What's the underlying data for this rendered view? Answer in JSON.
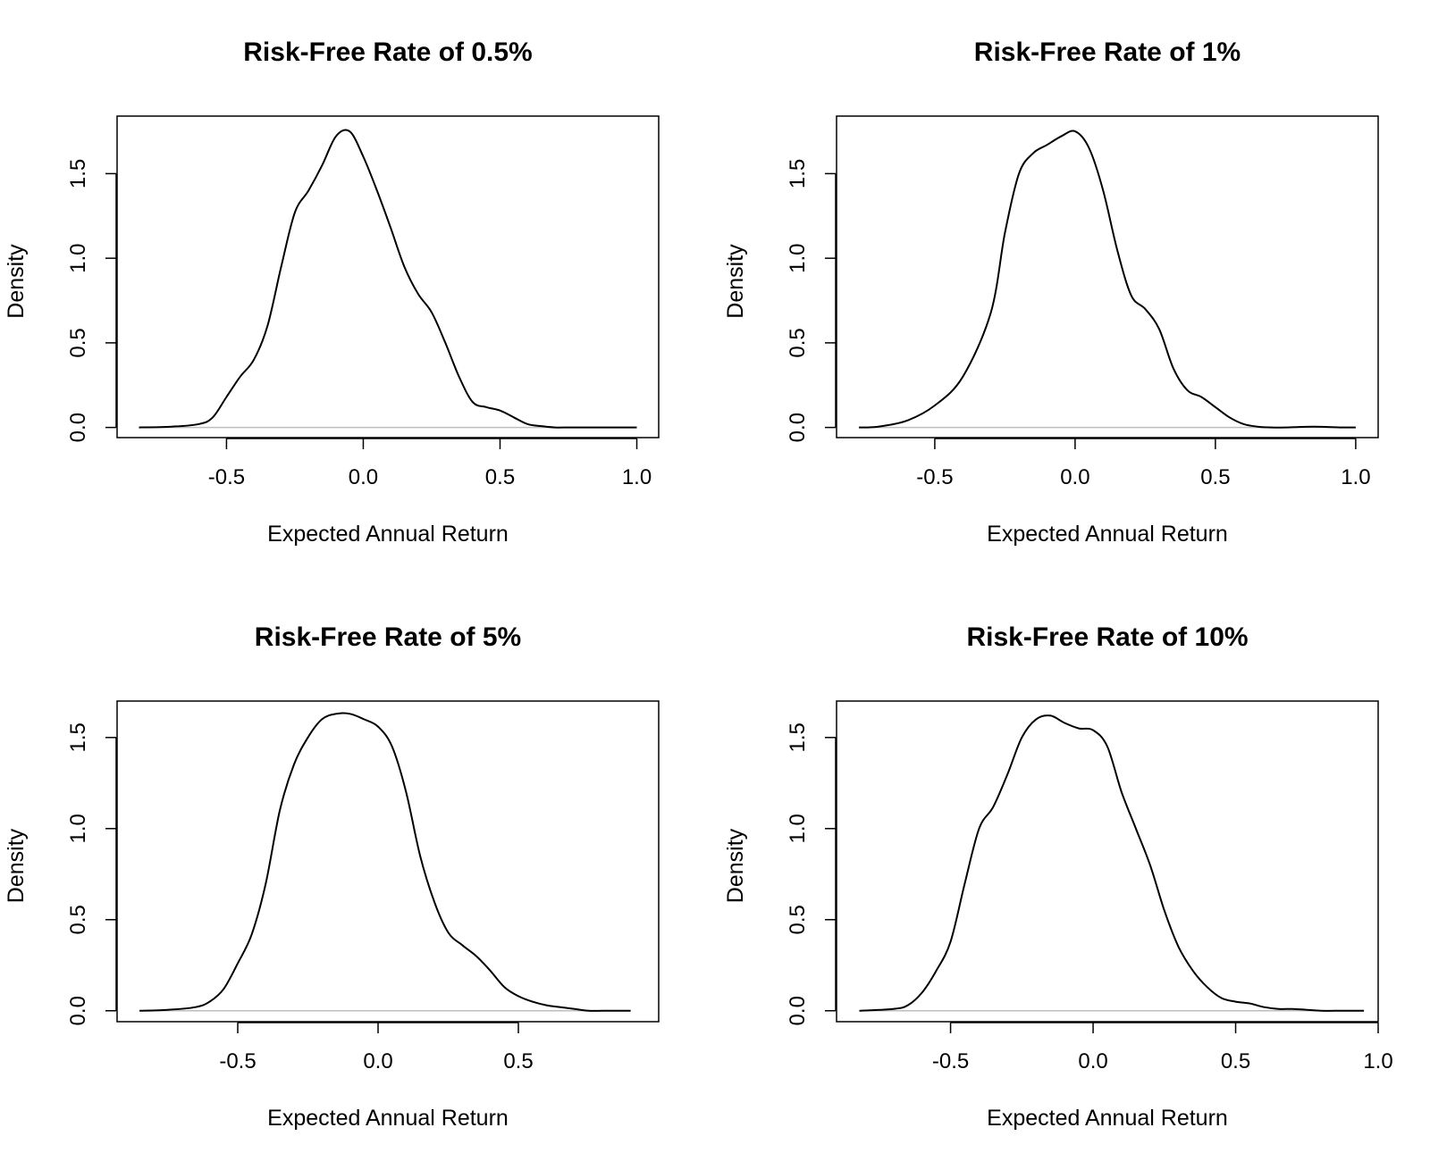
{
  "chart_data": [
    {
      "type": "line",
      "title": "Risk-Free Rate of 0.5%",
      "xlabel": "Expected Annual Return",
      "ylabel": "Density",
      "xlim": [
        -0.9,
        1.08
      ],
      "ylim": [
        -0.06,
        1.84
      ],
      "xticks": [
        -0.5,
        0.0,
        0.5,
        1.0
      ],
      "xtick_labels": [
        "-0.5",
        "0.0",
        "0.5",
        "1.0"
      ],
      "yticks": [
        0.0,
        0.5,
        1.0,
        1.5
      ],
      "ytick_labels": [
        "0.0",
        "0.5",
        "1.0",
        "1.5"
      ],
      "x": [
        -0.82,
        -0.7,
        -0.6,
        -0.55,
        -0.5,
        -0.45,
        -0.4,
        -0.35,
        -0.3,
        -0.25,
        -0.2,
        -0.15,
        -0.1,
        -0.05,
        0.0,
        0.05,
        0.1,
        0.15,
        0.2,
        0.25,
        0.3,
        0.35,
        0.4,
        0.45,
        0.5,
        0.55,
        0.6,
        0.65,
        0.7,
        0.75,
        0.8,
        0.9,
        1.0
      ],
      "y": [
        0.0,
        0.005,
        0.02,
        0.06,
        0.18,
        0.3,
        0.4,
        0.6,
        0.95,
        1.27,
        1.4,
        1.55,
        1.72,
        1.75,
        1.6,
        1.4,
        1.18,
        0.95,
        0.79,
        0.68,
        0.5,
        0.3,
        0.15,
        0.12,
        0.1,
        0.06,
        0.02,
        0.008,
        0.0,
        0.0,
        0.0,
        0.0,
        0.0
      ]
    },
    {
      "type": "line",
      "title": "Risk-Free Rate of 1%",
      "xlabel": "Expected Annual Return",
      "ylabel": "Density",
      "xlim": [
        -0.85,
        1.08
      ],
      "ylim": [
        -0.06,
        1.84
      ],
      "xticks": [
        -0.5,
        0.0,
        0.5,
        1.0
      ],
      "xtick_labels": [
        "-0.5",
        "0.0",
        "0.5",
        "1.0"
      ],
      "yticks": [
        0.0,
        0.5,
        1.0,
        1.5
      ],
      "ytick_labels": [
        "0.0",
        "0.5",
        "1.0",
        "1.5"
      ],
      "x": [
        -0.77,
        -0.7,
        -0.6,
        -0.5,
        -0.4,
        -0.3,
        -0.25,
        -0.2,
        -0.15,
        -0.1,
        -0.05,
        0.0,
        0.05,
        0.1,
        0.15,
        0.2,
        0.25,
        0.3,
        0.35,
        0.4,
        0.45,
        0.5,
        0.55,
        0.6,
        0.65,
        0.7,
        0.75,
        0.85,
        0.95,
        1.0
      ],
      "y": [
        0.0,
        0.005,
        0.04,
        0.13,
        0.3,
        0.68,
        1.15,
        1.5,
        1.62,
        1.67,
        1.72,
        1.75,
        1.65,
        1.4,
        1.05,
        0.78,
        0.7,
        0.58,
        0.35,
        0.22,
        0.18,
        0.12,
        0.06,
        0.02,
        0.005,
        0.0,
        0.0,
        0.005,
        0.0,
        0.0
      ]
    },
    {
      "type": "line",
      "title": "Risk-Free Rate of 5%",
      "xlabel": "Expected Annual Return",
      "ylabel": "Density",
      "xlim": [
        -0.93,
        1.0
      ],
      "ylim": [
        -0.06,
        1.7
      ],
      "xticks": [
        -0.5,
        0.0,
        0.5
      ],
      "xtick_labels": [
        "-0.5",
        "0.0",
        "0.5"
      ],
      "yticks": [
        0.0,
        0.5,
        1.0,
        1.5
      ],
      "ytick_labels": [
        "0.0",
        "0.5",
        "1.0",
        "1.5"
      ],
      "x": [
        -0.85,
        -0.75,
        -0.65,
        -0.6,
        -0.55,
        -0.5,
        -0.45,
        -0.4,
        -0.35,
        -0.3,
        -0.25,
        -0.2,
        -0.15,
        -0.1,
        -0.05,
        0.0,
        0.05,
        0.1,
        0.15,
        0.2,
        0.25,
        0.3,
        0.35,
        0.4,
        0.45,
        0.5,
        0.55,
        0.6,
        0.65,
        0.7,
        0.75,
        0.8,
        0.85,
        0.9
      ],
      "y": [
        0.0,
        0.005,
        0.02,
        0.05,
        0.12,
        0.26,
        0.42,
        0.7,
        1.1,
        1.35,
        1.5,
        1.6,
        1.63,
        1.63,
        1.6,
        1.56,
        1.45,
        1.2,
        0.85,
        0.6,
        0.43,
        0.36,
        0.3,
        0.22,
        0.13,
        0.08,
        0.05,
        0.03,
        0.02,
        0.01,
        0.0,
        0.0,
        0.0,
        0.0
      ]
    },
    {
      "type": "line",
      "title": "Risk-Free Rate of 10%",
      "xlabel": "Expected Annual Return",
      "ylabel": "Density",
      "xlim": [
        -0.9,
        1.0
      ],
      "ylim": [
        -0.06,
        1.7
      ],
      "xticks": [
        -0.5,
        0.0,
        0.5,
        1.0
      ],
      "xtick_labels": [
        "-0.5",
        "0.0",
        "0.5",
        "1.0"
      ],
      "yticks": [
        0.0,
        0.5,
        1.0,
        1.5
      ],
      "ytick_labels": [
        "0.0",
        "0.5",
        "1.0",
        "1.5"
      ],
      "x": [
        -0.82,
        -0.7,
        -0.65,
        -0.6,
        -0.55,
        -0.5,
        -0.45,
        -0.4,
        -0.35,
        -0.3,
        -0.25,
        -0.2,
        -0.15,
        -0.1,
        -0.05,
        0.0,
        0.05,
        0.1,
        0.15,
        0.2,
        0.25,
        0.3,
        0.35,
        0.4,
        0.45,
        0.5,
        0.55,
        0.6,
        0.65,
        0.7,
        0.75,
        0.8,
        0.85,
        0.95
      ],
      "y": [
        0.0,
        0.01,
        0.03,
        0.1,
        0.22,
        0.38,
        0.7,
        1.0,
        1.12,
        1.3,
        1.5,
        1.6,
        1.62,
        1.58,
        1.55,
        1.54,
        1.45,
        1.2,
        1.0,
        0.8,
        0.55,
        0.35,
        0.22,
        0.13,
        0.07,
        0.05,
        0.04,
        0.02,
        0.01,
        0.01,
        0.005,
        0.0,
        0.0,
        0.0
      ]
    }
  ]
}
